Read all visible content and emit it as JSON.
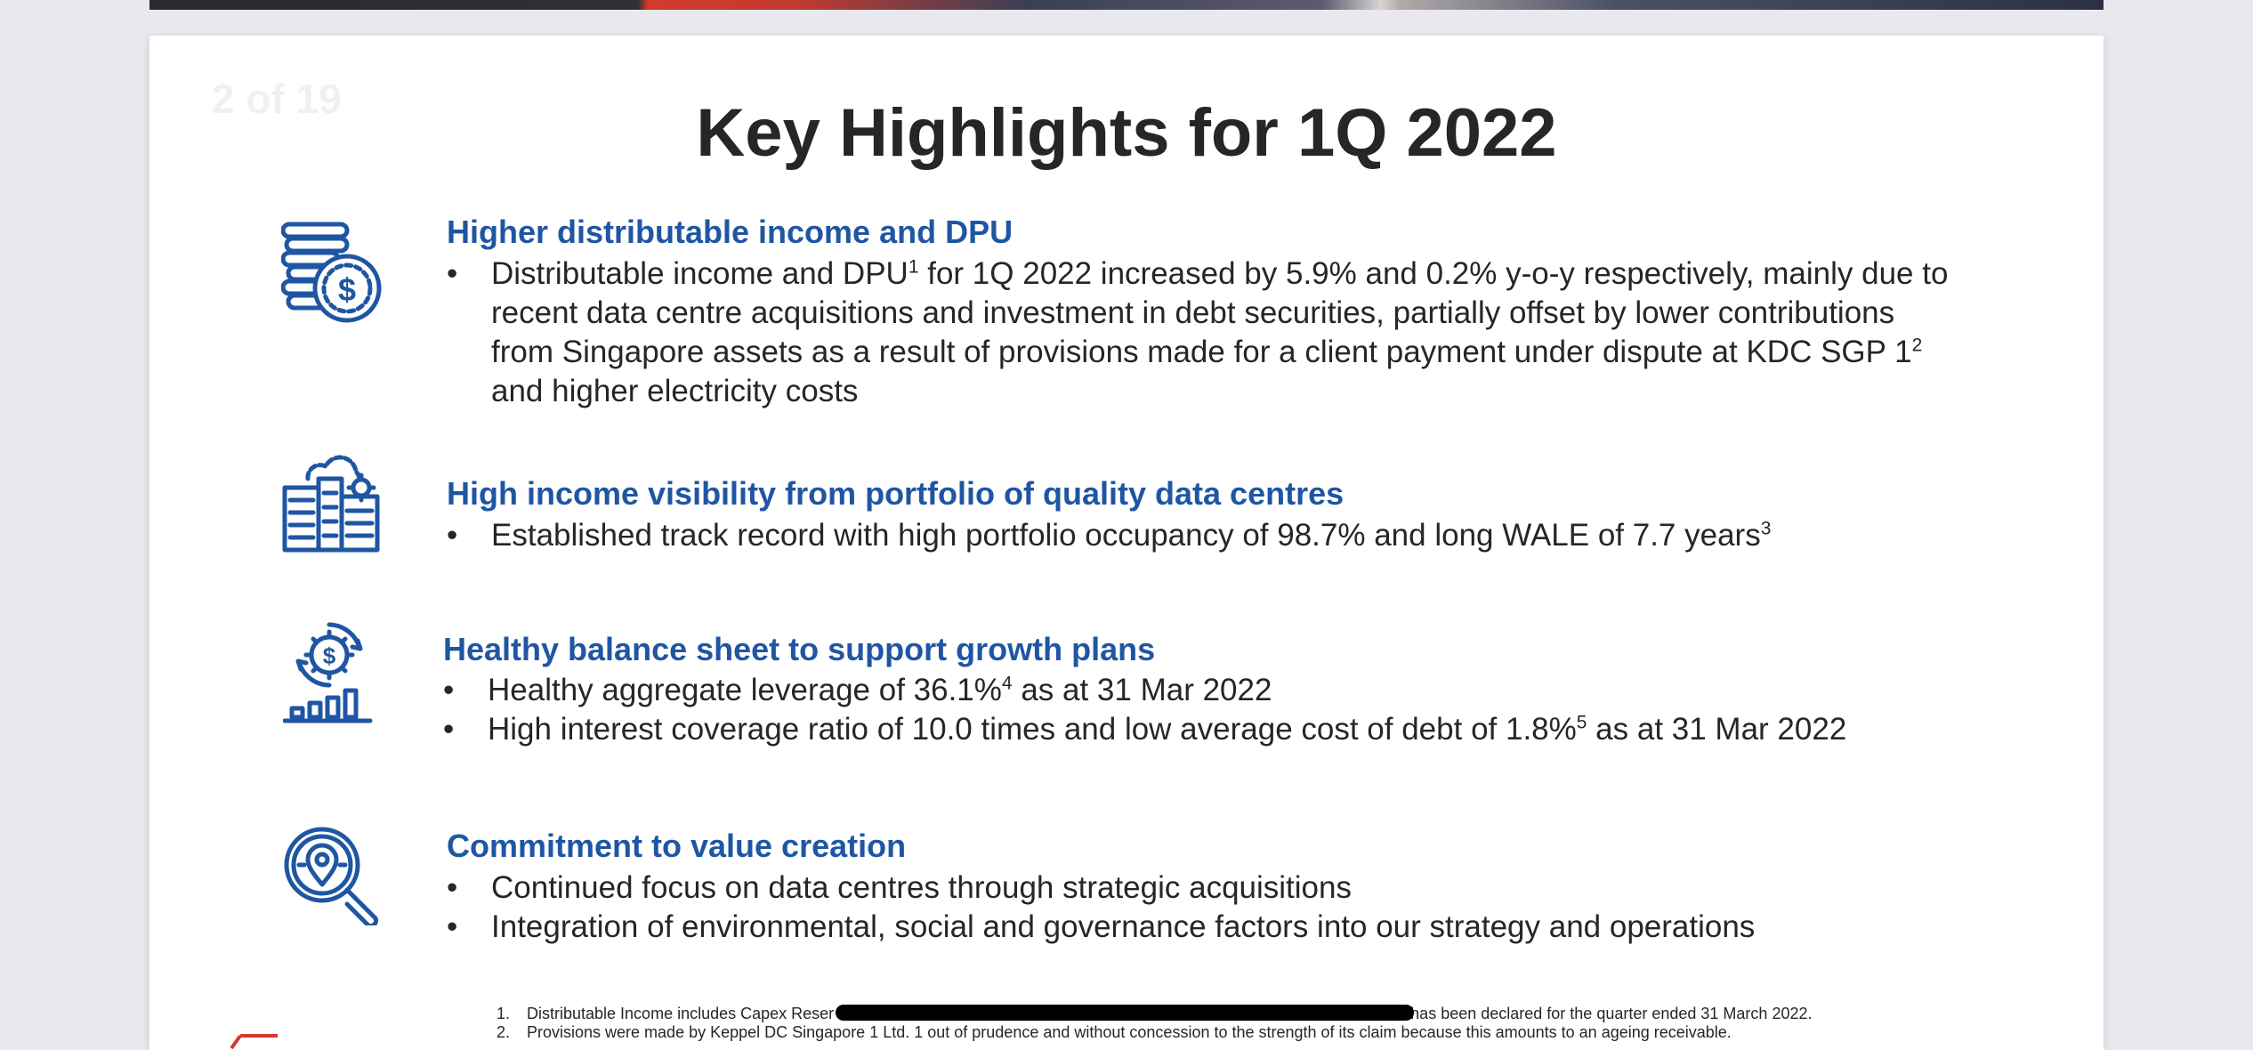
{
  "slide": {
    "page_indicator": "2 of 19",
    "title": "Key Highlights for 1Q 2022"
  },
  "sections": [
    {
      "icon": "coins-dollar-icon",
      "heading": "Higher distributable income and DPU",
      "bullets": [
        {
          "marker": "•",
          "parts": [
            "Distributable income and DPU",
            "1",
            " for 1Q 2022 increased by 5.9% and 0.2% y-o-y respectively, mainly due to",
            "recent data centre acquisitions and investment in debt securities, partially offset by lower contributions",
            "from Singapore assets as a result of provisions made for a client payment under dispute at KDC SGP 1",
            "2",
            "and higher electricity costs"
          ]
        }
      ]
    },
    {
      "icon": "data-centre-cloud-icon",
      "heading": "High income visibility from portfolio of quality data centres",
      "bullets": [
        {
          "marker": "•",
          "text": "Established track record with high portfolio occupancy of 98.7% and long WALE of 7.7 years",
          "sup": "3"
        }
      ]
    },
    {
      "icon": "growth-gear-chart-icon",
      "heading": "Healthy balance sheet to support growth plans",
      "bullets": [
        {
          "marker": "•",
          "text": "Healthy aggregate leverage of 36.1%",
          "sup": "4",
          "after": " as at 31 Mar 2022"
        },
        {
          "marker": "•",
          "text": "High interest coverage ratio of 10.0 times and low average cost of debt of 1.8%",
          "sup": "5",
          "after": " as at 31 Mar 2022"
        }
      ]
    },
    {
      "icon": "magnifier-location-icon",
      "heading": "Commitment to value creation",
      "bullets": [
        {
          "marker": "•",
          "text": "Continued focus on data centres through strategic acquisitions"
        },
        {
          "marker": "•",
          "text": "Integration of environmental, social and governance factors into our strategy and operations"
        }
      ]
    }
  ],
  "footnotes": [
    {
      "num": "1.",
      "text_before": "Distributable Income includes Capex Reser",
      "text_after": "has been declared for the quarter ended 31 March 2022."
    },
    {
      "num": "2.",
      "text": "Provisions were made by Keppel DC Singapore 1 Ltd. 1 out of prudence and without concession to the strength of its claim because this amounts to an ageing receivable."
    }
  ],
  "colors": {
    "heading": "#1f56a3",
    "icon": "#1f56a3",
    "body_text": "#262626",
    "background": "#e9e8ee"
  }
}
